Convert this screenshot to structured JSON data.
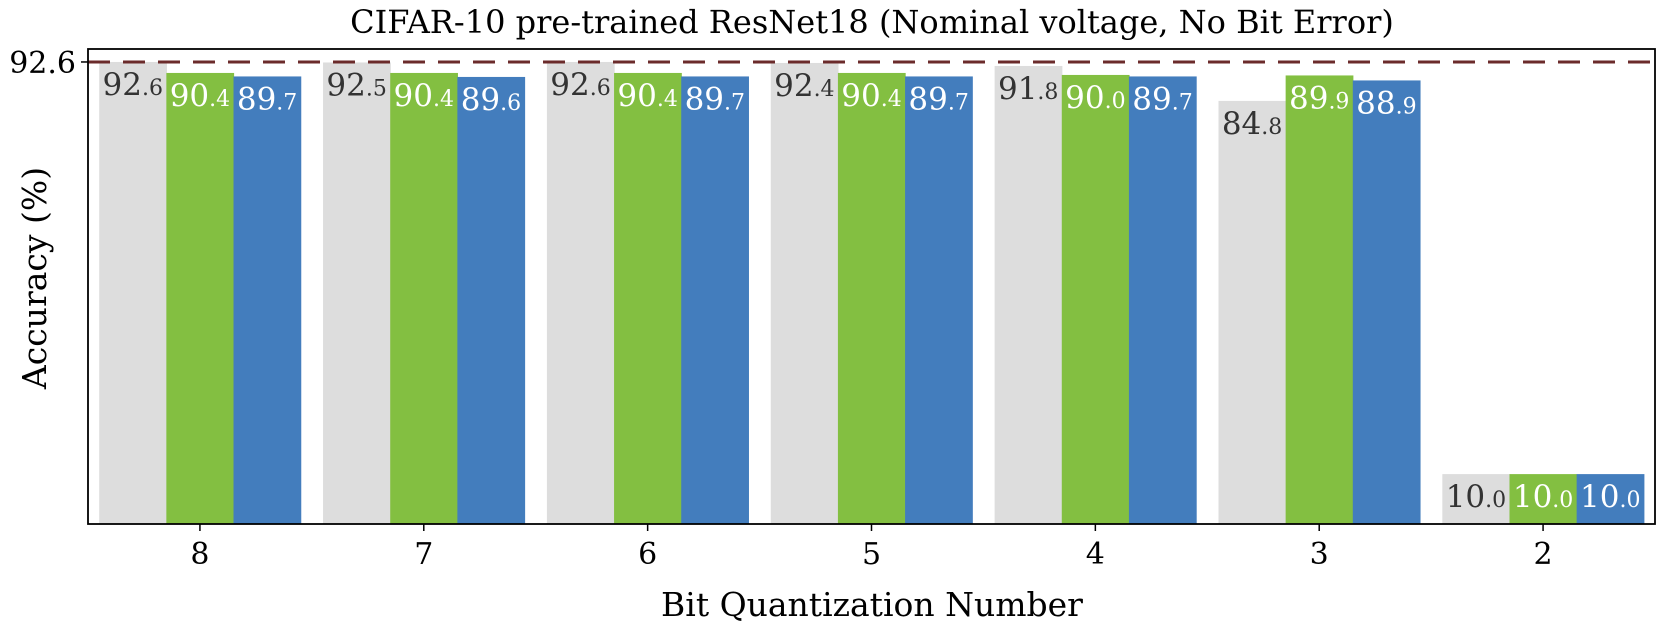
{
  "chart_data": {
    "type": "bar",
    "title": "CIFAR-10 pre-trained ResNet18 (Nominal voltage, No Bit Error)",
    "xlabel": "Bit Quantization Number",
    "ylabel": "Accuracy (%)",
    "categories": [
      "8",
      "7",
      "6",
      "5",
      "4",
      "3",
      "2"
    ],
    "series": [
      {
        "values": [
          92.6,
          92.5,
          92.6,
          92.4,
          91.8,
          84.8,
          10.0
        ],
        "color": "#dddddd",
        "label_color": "#333333"
      },
      {
        "values": [
          90.4,
          90.4,
          90.4,
          90.4,
          90.0,
          89.9,
          10.0
        ],
        "color": "#83bf41",
        "label_color": "#ffffff"
      },
      {
        "values": [
          89.7,
          89.6,
          89.7,
          89.7,
          89.7,
          88.9,
          10.0
        ],
        "color": "#437dbd",
        "label_color": "#ffffff"
      }
    ],
    "reference_line": {
      "value": 92.6,
      "color": "#6b2b2b",
      "style": "dashed"
    },
    "yticks": [
      "92.6"
    ],
    "ylim": [
      0,
      95.2
    ],
    "grid": false,
    "legend": "none"
  }
}
